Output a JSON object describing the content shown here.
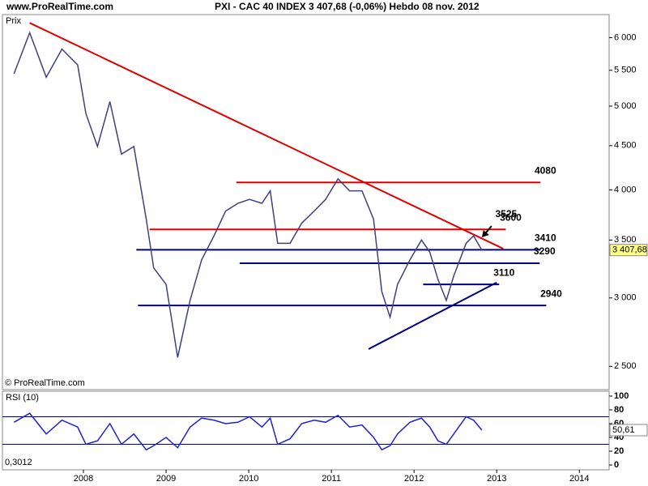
{
  "header": {
    "site": "www.ProRealTime.com",
    "title": "PXI - CAC 40 INDEX    3 407,68 (-0,06%)    Hebdo  08 nov. 2012"
  },
  "chart_data": [
    {
      "type": "line",
      "panel_label": "Prix",
      "copyright": "© ProRealTime.com",
      "log_scale": true,
      "xlim": [
        2007.02,
        2014.36
      ],
      "xticks": [
        2008,
        2009,
        2010,
        2011,
        2012,
        2013,
        2014
      ],
      "ylim": [
        2350,
        6380
      ],
      "yticks": [
        {
          "value": 2500,
          "label": "2 500"
        },
        {
          "value": 3000,
          "label": "3 000"
        },
        {
          "value": 3500,
          "label": "3 500"
        },
        {
          "value": 4000,
          "label": "4 000"
        },
        {
          "value": 4500,
          "label": "4 500"
        },
        {
          "value": 5000,
          "label": "5 000"
        },
        {
          "value": 5500,
          "label": "5 500"
        },
        {
          "value": 6000,
          "label": "6 000"
        }
      ],
      "x": [
        2007.16,
        2007.35,
        2007.55,
        2007.74,
        2007.93,
        2008.03,
        2008.17,
        2008.32,
        2008.46,
        2008.61,
        2008.76,
        2008.85,
        2009.0,
        2009.14,
        2009.29,
        2009.43,
        2009.58,
        2009.72,
        2009.87,
        2010.01,
        2010.16,
        2010.26,
        2010.35,
        2010.5,
        2010.64,
        2010.79,
        2010.93,
        2011.08,
        2011.22,
        2011.37,
        2011.51,
        2011.61,
        2011.71,
        2011.8,
        2011.95,
        2012.09,
        2012.19,
        2012.29,
        2012.39,
        2012.48,
        2012.63,
        2012.72,
        2012.82
      ],
      "series": [
        {
          "color": "#404080",
          "values": [
            5450,
            6080,
            5400,
            5820,
            5580,
            4900,
            4490,
            5060,
            4400,
            4490,
            3700,
            3250,
            3110,
            2560,
            2980,
            3320,
            3540,
            3780,
            3860,
            3900,
            3860,
            3990,
            3470,
            3470,
            3660,
            3780,
            3900,
            4120,
            3990,
            3990,
            3700,
            3050,
            2850,
            3110,
            3320,
            3500,
            3390,
            3150,
            2980,
            3180,
            3470,
            3540,
            3407.68
          ]
        }
      ],
      "last_label": "3 407,68",
      "levels": [
        {
          "value": 4080,
          "color": "#e00000",
          "x": [
            2009.85,
            2013.53
          ]
        },
        {
          "value": 3600,
          "color": "#e00000",
          "x": [
            2008.8,
            2013.11
          ]
        },
        {
          "value": 3410,
          "color": "#000080",
          "x": [
            2008.64,
            2013.53
          ]
        },
        {
          "value": 3290,
          "color": "#000080",
          "x": [
            2009.89,
            2013.52
          ]
        },
        {
          "value": 3110,
          "color": "#000080",
          "x": [
            2012.11,
            2013.03
          ]
        },
        {
          "value": 2940,
          "color": "#000080",
          "x": [
            2008.66,
            2013.6
          ]
        }
      ],
      "trendlines": [
        {
          "color": "#e00000",
          "x": [
            2007.35,
            2013.08
          ],
          "values": [
            6240,
            3420
          ]
        },
        {
          "color": "#000080",
          "x": [
            2011.45,
            2013.0
          ],
          "values": [
            2618,
            3126
          ]
        }
      ],
      "callout": {
        "value": 3525,
        "x": 2012.82
      }
    },
    {
      "type": "line",
      "panel_label": "RSI (10)",
      "bottom_note": "0,3012",
      "xlim": [
        2007.02,
        2014.36
      ],
      "ylim": [
        -7,
        107
      ],
      "yticks": [
        0,
        20,
        40,
        60,
        80,
        100
      ],
      "bands": [
        30,
        70
      ],
      "x": [
        2007.16,
        2007.35,
        2007.55,
        2007.74,
        2007.93,
        2008.03,
        2008.17,
        2008.32,
        2008.46,
        2008.61,
        2008.76,
        2008.85,
        2009.0,
        2009.14,
        2009.29,
        2009.43,
        2009.58,
        2009.72,
        2009.87,
        2010.01,
        2010.16,
        2010.26,
        2010.35,
        2010.5,
        2010.64,
        2010.79,
        2010.93,
        2011.08,
        2011.22,
        2011.37,
        2011.51,
        2011.61,
        2011.71,
        2011.8,
        2011.95,
        2012.09,
        2012.19,
        2012.29,
        2012.39,
        2012.48,
        2012.63,
        2012.72,
        2012.82
      ],
      "series": [
        {
          "color": "#2020d0",
          "values": [
            62,
            75,
            45,
            65,
            55,
            30,
            35,
            60,
            30,
            45,
            22,
            28,
            40,
            25,
            55,
            68,
            65,
            60,
            62,
            70,
            55,
            68,
            30,
            38,
            60,
            65,
            62,
            72,
            55,
            58,
            40,
            22,
            28,
            45,
            62,
            68,
            55,
            35,
            30,
            45,
            70,
            65,
            50.61
          ]
        }
      ],
      "last_label": "50,61"
    }
  ]
}
